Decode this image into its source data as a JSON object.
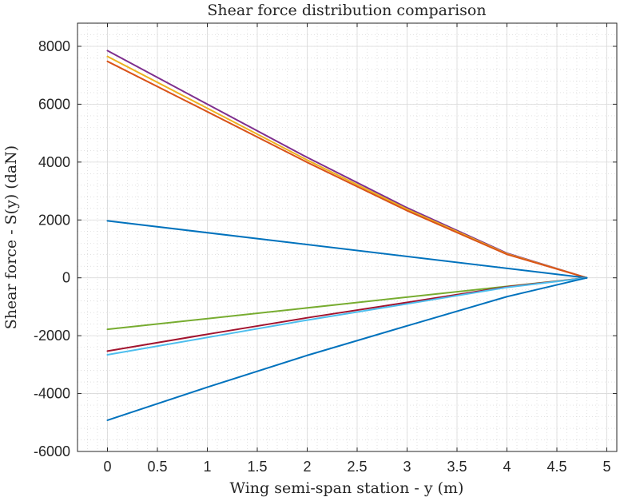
{
  "chart_data": {
    "type": "line",
    "title": "Shear force distribution comparison",
    "xlabel": "Wing semi-span station - y (m)",
    "ylabel": "Shear force - S(y) (daN)",
    "xlim": [
      -0.3,
      5.1
    ],
    "ylim": [
      -6000,
      8800
    ],
    "xticks": [
      0,
      0.5,
      1,
      1.5,
      2,
      2.5,
      3,
      3.5,
      4,
      4.5,
      5
    ],
    "xtick_labels": [
      "0",
      "0.5",
      "1",
      "1.5",
      "2",
      "2.5",
      "3",
      "3.5",
      "4",
      "4.5",
      "5"
    ],
    "yticks": [
      -6000,
      -4000,
      -2000,
      0,
      2000,
      4000,
      6000,
      8000
    ],
    "ytick_labels": [
      "-6000",
      "-4000",
      "-2000",
      "0",
      "2000",
      "4000",
      "6000",
      "8000"
    ],
    "grid": true,
    "minor_grid": true,
    "legend": false,
    "series": [
      {
        "color": "#7E2F8E",
        "x": [
          0,
          1,
          2,
          3,
          4,
          4.8
        ],
        "y": [
          7850,
          6000,
          4160,
          2420,
          850,
          0
        ]
      },
      {
        "color": "#EDB120",
        "x": [
          0,
          1,
          2,
          3,
          4,
          4.8
        ],
        "y": [
          7650,
          5860,
          4070,
          2370,
          830,
          0
        ]
      },
      {
        "color": "#D95319",
        "x": [
          0,
          1,
          2,
          3,
          4,
          4.8
        ],
        "y": [
          7480,
          5740,
          3990,
          2320,
          810,
          0
        ]
      },
      {
        "color": "#0072BD",
        "x": [
          0,
          4.8
        ],
        "y": [
          1970,
          0
        ]
      },
      {
        "color": "#77AC30",
        "x": [
          0,
          4.8
        ],
        "y": [
          -1780,
          0
        ]
      },
      {
        "color": "#A2142F",
        "x": [
          0,
          1,
          2,
          3,
          4,
          4.8
        ],
        "y": [
          -2530,
          -1950,
          -1380,
          -850,
          -310,
          0
        ]
      },
      {
        "color": "#4DBEEE",
        "x": [
          0,
          1,
          2,
          3,
          4,
          4.8
        ],
        "y": [
          -2660,
          -2060,
          -1460,
          -900,
          -330,
          0
        ]
      },
      {
        "color": "#0072BD",
        "x": [
          0,
          1,
          2,
          3,
          4,
          4.8
        ],
        "y": [
          -4920,
          -3780,
          -2680,
          -1660,
          -650,
          0
        ]
      }
    ]
  }
}
